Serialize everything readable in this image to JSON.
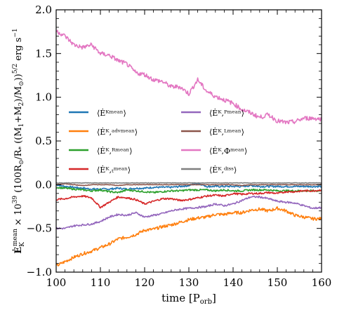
{
  "chart_data": {
    "type": "line",
    "title": "",
    "xlabel": "time [Pₒᵣᵦ]",
    "xlabel_main": "time [P",
    "xlabel_sub": "orb",
    "xlabel_end": "]",
    "ylabel": "Ėᴷᵐᵉᵃⁿ × 10³⁹ (100R⊙/R* ((M1+M2)/M⊙))^(5/2) erg s⁻¹",
    "xlim": [
      100,
      160
    ],
    "ylim": [
      -1.0,
      2.0
    ],
    "xticks": [
      "100",
      "110",
      "120",
      "130",
      "140",
      "150",
      "160"
    ],
    "yticks": [
      "−1.0",
      "−0.5",
      "0.0",
      "0.5",
      "1.0",
      "1.5",
      "2.0"
    ],
    "grid": false,
    "legend_position": "center-left",
    "x": [
      100,
      102,
      104,
      106,
      108,
      110,
      112,
      114,
      116,
      118,
      120,
      122,
      124,
      126,
      128,
      130,
      132,
      134,
      136,
      138,
      140,
      142,
      144,
      146,
      148,
      150,
      152,
      154,
      156,
      158,
      160
    ],
    "series": [
      {
        "name": "⟨Ė_K^mean⟩",
        "color": "#1f77b4",
        "values": [
          0.0,
          -0.02,
          -0.03,
          -0.04,
          -0.05,
          -0.05,
          -0.05,
          -0.04,
          -0.05,
          -0.04,
          -0.04,
          -0.03,
          -0.03,
          -0.03,
          -0.02,
          -0.01,
          0.02,
          -0.02,
          -0.02,
          -0.02,
          -0.02,
          -0.02,
          -0.01,
          -0.02,
          -0.02,
          -0.02,
          -0.02,
          -0.02,
          -0.02,
          -0.02,
          -0.02
        ]
      },
      {
        "name": "⟨Ė_K,adv^mean⟩",
        "color": "#ff7f0e",
        "values": [
          -0.93,
          -0.88,
          -0.83,
          -0.79,
          -0.76,
          -0.72,
          -0.68,
          -0.62,
          -0.6,
          -0.57,
          -0.52,
          -0.51,
          -0.48,
          -0.46,
          -0.43,
          -0.4,
          -0.38,
          -0.37,
          -0.34,
          -0.34,
          -0.32,
          -0.32,
          -0.29,
          -0.28,
          -0.3,
          -0.27,
          -0.3,
          -0.35,
          -0.37,
          -0.39,
          -0.39
        ]
      },
      {
        "name": "⟨Ė_K,R^mean⟩",
        "color": "#2ca02c",
        "values": [
          -0.03,
          -0.04,
          -0.05,
          -0.06,
          -0.07,
          -0.06,
          -0.08,
          -0.09,
          -0.06,
          -0.07,
          -0.08,
          -0.09,
          -0.08,
          -0.07,
          -0.07,
          -0.06,
          -0.06,
          -0.06,
          -0.07,
          -0.06,
          -0.07,
          -0.07,
          -0.06,
          -0.06,
          -0.06,
          -0.07,
          -0.07,
          -0.07,
          -0.07,
          -0.07,
          -0.07
        ]
      },
      {
        "name": "⟨Ė_K,t^mean⟩",
        "color": "#d62728",
        "values": [
          -0.17,
          -0.16,
          -0.14,
          -0.13,
          -0.15,
          -0.26,
          -0.2,
          -0.14,
          -0.15,
          -0.17,
          -0.22,
          -0.19,
          -0.16,
          -0.16,
          -0.18,
          -0.17,
          -0.15,
          -0.13,
          -0.12,
          -0.13,
          -0.1,
          -0.11,
          -0.1,
          -0.1,
          -0.09,
          -0.1,
          -0.08,
          -0.08,
          -0.07,
          -0.07,
          -0.06
        ]
      },
      {
        "name": "⟨Ė_K,P^mean⟩",
        "color": "#9467bd",
        "values": [
          -0.5,
          -0.5,
          -0.47,
          -0.46,
          -0.45,
          -0.42,
          -0.37,
          -0.34,
          -0.35,
          -0.32,
          -0.37,
          -0.35,
          -0.33,
          -0.3,
          -0.28,
          -0.27,
          -0.26,
          -0.25,
          -0.22,
          -0.24,
          -0.22,
          -0.18,
          -0.14,
          -0.14,
          -0.16,
          -0.19,
          -0.2,
          -0.21,
          -0.24,
          -0.27,
          -0.26
        ]
      },
      {
        "name": "⟨Ė_K,L^mean⟩",
        "color": "#8c564b",
        "values": [
          0.0,
          0.01,
          0.0,
          -0.01,
          0.0,
          0.0,
          0.0,
          -0.01,
          0.0,
          0.0,
          0.0,
          0.0,
          0.0,
          0.0,
          0.0,
          0.0,
          0.0,
          0.0,
          0.0,
          0.0,
          0.0,
          -0.01,
          0.0,
          0.0,
          0.0,
          0.0,
          0.0,
          0.0,
          0.0,
          0.0,
          0.0
        ]
      },
      {
        "name": "⟨Ė_K,Φ^mean⟩",
        "color": "#e377c2",
        "values": [
          1.76,
          1.7,
          1.6,
          1.57,
          1.6,
          1.5,
          1.48,
          1.42,
          1.38,
          1.28,
          1.26,
          1.2,
          1.18,
          1.12,
          1.12,
          1.04,
          1.2,
          1.07,
          1.01,
          0.97,
          0.93,
          0.86,
          0.82,
          0.77,
          0.8,
          0.73,
          0.71,
          0.72,
          0.76,
          0.76,
          0.75
        ]
      },
      {
        "name": "⟨Ė_K,diss⟩",
        "color": "#7f7f7f",
        "values": [
          0.02,
          0.02,
          0.02,
          0.02,
          0.02,
          0.02,
          0.02,
          0.02,
          0.02,
          0.02,
          0.02,
          0.02,
          0.02,
          0.02,
          0.02,
          0.02,
          0.02,
          0.02,
          0.02,
          0.02,
          0.02,
          0.02,
          0.02,
          0.02,
          0.02,
          0.02,
          0.02,
          0.02,
          0.02,
          0.02,
          0.02
        ]
      }
    ],
    "legend": [
      {
        "label": "⟨Ėᴷᵐᵉᵃⁿ⟩",
        "color": "#1f77b4"
      },
      {
        "label": "⟨Ėᴷ,ᵃᵈᵛᵐᵉᵃⁿ⟩",
        "color": "#ff7f0e"
      },
      {
        "label": "⟨Ėᴷ,ᴿᵐᵉᵃⁿ⟩",
        "color": "#2ca02c"
      },
      {
        "label": "⟨Ėᴷ,ₜᵐᵉᵃⁿ⟩",
        "color": "#d62728"
      },
      {
        "label": "⟨Ėᴷ,ᴾᵐᵉᵃⁿ⟩",
        "color": "#9467bd"
      },
      {
        "label": "⟨Ėᴷ,ᴸᵐᵉᵃⁿ⟩",
        "color": "#8c564b"
      },
      {
        "label": "⟨Ėᴷ,Φᵐᵉᵃⁿ⟩",
        "color": "#e377c2"
      },
      {
        "label": "⟨Ėᴷ,ᵈⁱˢˢ⟩",
        "color": "#7f7f7f"
      }
    ]
  }
}
